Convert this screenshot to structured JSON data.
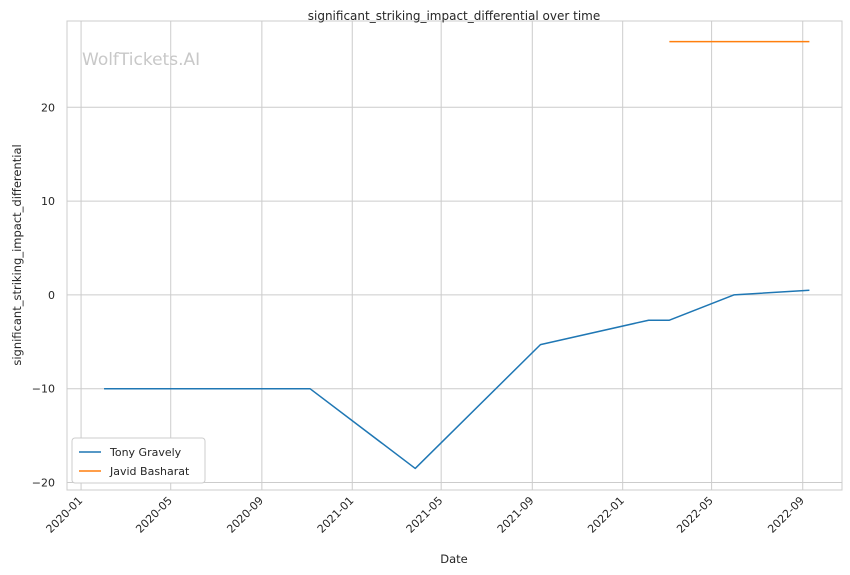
{
  "chart_data": {
    "type": "line",
    "title": "significant_striking_impact_differential over time",
    "xlabel": "Date",
    "ylabel": "significant_striking_impact_differential",
    "watermark": "WolfTickets.AI",
    "x_ticks": [
      "2020-01",
      "2020-05",
      "2020-09",
      "2021-01",
      "2021-05",
      "2021-09",
      "2022-01",
      "2022-05",
      "2022-09"
    ],
    "y_ticks": [
      -20,
      -10,
      0,
      10,
      20
    ],
    "xlim": [
      "2019-12-13",
      "2022-10-24"
    ],
    "ylim": [
      -20.8,
      29.2
    ],
    "grid": true,
    "legend_position": "lower-left",
    "series": [
      {
        "name": "Tony Gravely",
        "color": "#1f77b4",
        "points": [
          {
            "x": "2020-02-01",
            "y": -10.0
          },
          {
            "x": "2020-11-05",
            "y": -10.0
          },
          {
            "x": "2021-03-27",
            "y": -18.5
          },
          {
            "x": "2021-09-12",
            "y": -5.3
          },
          {
            "x": "2022-02-05",
            "y": -2.7
          },
          {
            "x": "2022-03-05",
            "y": -2.7
          },
          {
            "x": "2022-05-31",
            "y": 0.0
          },
          {
            "x": "2022-09-10",
            "y": 0.5
          }
        ]
      },
      {
        "name": "Javid Basharat",
        "color": "#ff7f0e",
        "points": [
          {
            "x": "2022-03-05",
            "y": 27.0
          },
          {
            "x": "2022-09-10",
            "y": 27.0
          }
        ]
      }
    ]
  }
}
